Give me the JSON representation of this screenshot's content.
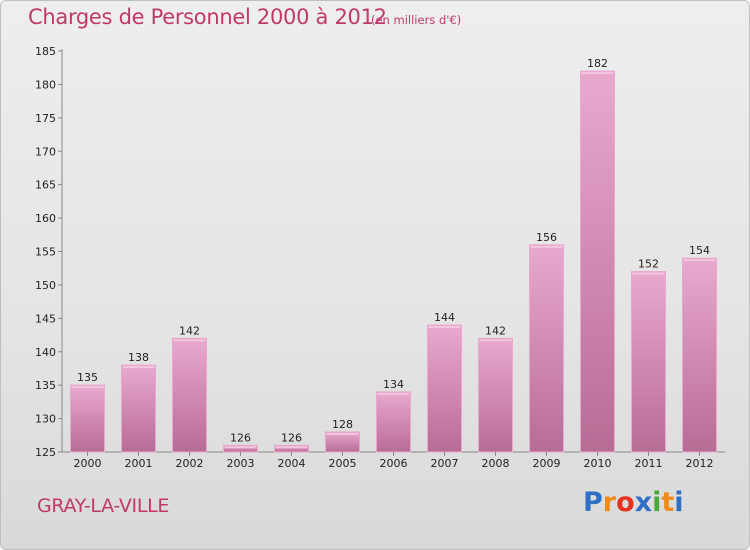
{
  "header": {
    "title": "Charges de Personnel 2000 à 2012",
    "subtitle": "(en milliers d'€)"
  },
  "footer": {
    "place": "GRAY-LA-VILLE",
    "brand": {
      "letters": [
        "P",
        "r",
        "o",
        "x",
        "i",
        "t",
        "i"
      ],
      "colors": [
        "#2f6fc6",
        "#f08a1c",
        "#e8311d",
        "#2f6fc6",
        "#4aa83a",
        "#f08a1c",
        "#2f6fc6"
      ]
    }
  },
  "chart_data": {
    "type": "bar",
    "title": "Charges de Personnel 2000 à 2012",
    "subtitle": "(en milliers d'€)",
    "categories": [
      "2000",
      "2001",
      "2002",
      "2003",
      "2004",
      "2005",
      "2006",
      "2007",
      "2008",
      "2009",
      "2010",
      "2011",
      "2012"
    ],
    "values": [
      135,
      138,
      142,
      126,
      126,
      128,
      134,
      144,
      142,
      156,
      182,
      152,
      154
    ],
    "ylim": [
      125,
      185
    ],
    "yticks": [
      125,
      130,
      135,
      140,
      145,
      150,
      155,
      160,
      165,
      170,
      175,
      180,
      185
    ],
    "grid": false,
    "bar_color": "#d68fb6",
    "bar_color_light": "#e9a9cf",
    "axis_color": "#888888"
  }
}
